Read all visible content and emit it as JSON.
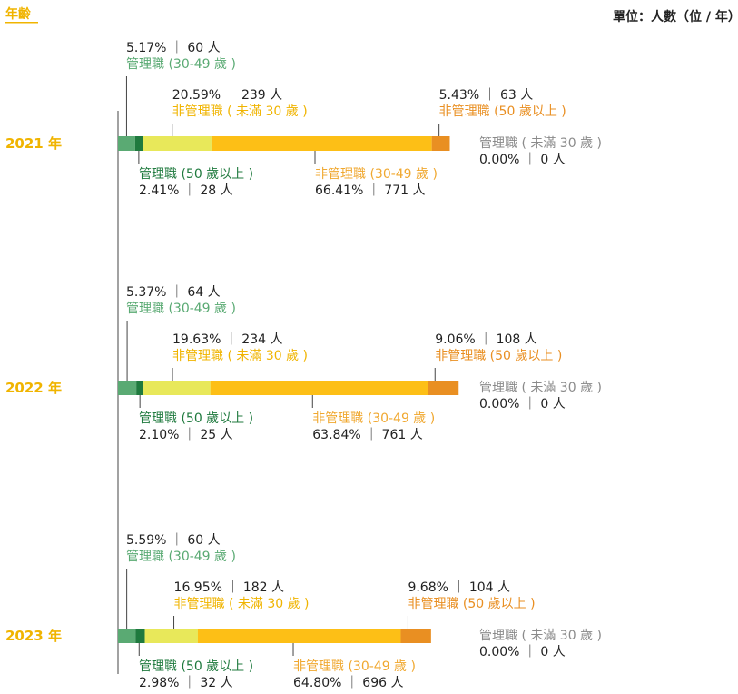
{
  "header": {
    "title": "年齡",
    "unit": "單位：人數（位 / 年）"
  },
  "colors": {
    "title": "#f0b400",
    "mgmt_under30": "#a8a8a8",
    "mgmt_30_49": "#5aaa73",
    "mgmt_50_plus": "#1f7a3e",
    "non_mgmt_under30": "#e8e85a",
    "non_mgmt_30_49": "#fdbf16",
    "non_mgmt_50_plus": "#e98f22",
    "text": "#222222",
    "line": "#444444"
  },
  "chart_data": {
    "type": "bar",
    "orientation": "horizontal-stacked",
    "categories": [
      "2021 年",
      "2022 年",
      "2023 年"
    ],
    "series": [
      {
        "name": "管理職 ( 未滿 30 歲 )",
        "key": "mgmt_under30",
        "percent": [
          "0.00%",
          "0.00%",
          "0.00%"
        ],
        "count": [
          "0 人",
          "0 人",
          "0 人"
        ],
        "values": [
          0,
          0,
          0
        ]
      },
      {
        "name": "管理職 (30-49 歲 )",
        "key": "mgmt_30_49",
        "percent": [
          "5.17%",
          "5.37%",
          "5.59%"
        ],
        "count": [
          "60 人",
          "64 人",
          "60 人"
        ],
        "values": [
          60,
          64,
          60
        ]
      },
      {
        "name": "管理職 (50 歲以上 )",
        "key": "mgmt_50_plus",
        "percent": [
          "2.41%",
          "2.10%",
          "2.98%"
        ],
        "count": [
          "28 人",
          "25 人",
          "32 人"
        ],
        "values": [
          28,
          25,
          32
        ]
      },
      {
        "name": "非管理職 ( 未滿 30 歲 )",
        "key": "non_mgmt_under30",
        "percent": [
          "20.59%",
          "19.63%",
          "16.95%"
        ],
        "count": [
          "239 人",
          "234 人",
          "182 人"
        ],
        "values": [
          239,
          234,
          182
        ]
      },
      {
        "name": "非管理職 (30-49 歲 )",
        "key": "non_mgmt_30_49",
        "percent": [
          "66.41%",
          "63.84%",
          "64.80%"
        ],
        "count": [
          "771 人",
          "761 人",
          "696 人"
        ],
        "values": [
          771,
          761,
          696
        ]
      },
      {
        "name": "非管理職 (50 歲以上 )",
        "key": "non_mgmt_50_plus",
        "percent": [
          "5.43%",
          "9.06%",
          "9.68%"
        ],
        "count": [
          "63 人",
          "108 人",
          "104 人"
        ],
        "values": [
          63,
          108,
          104
        ]
      }
    ]
  }
}
